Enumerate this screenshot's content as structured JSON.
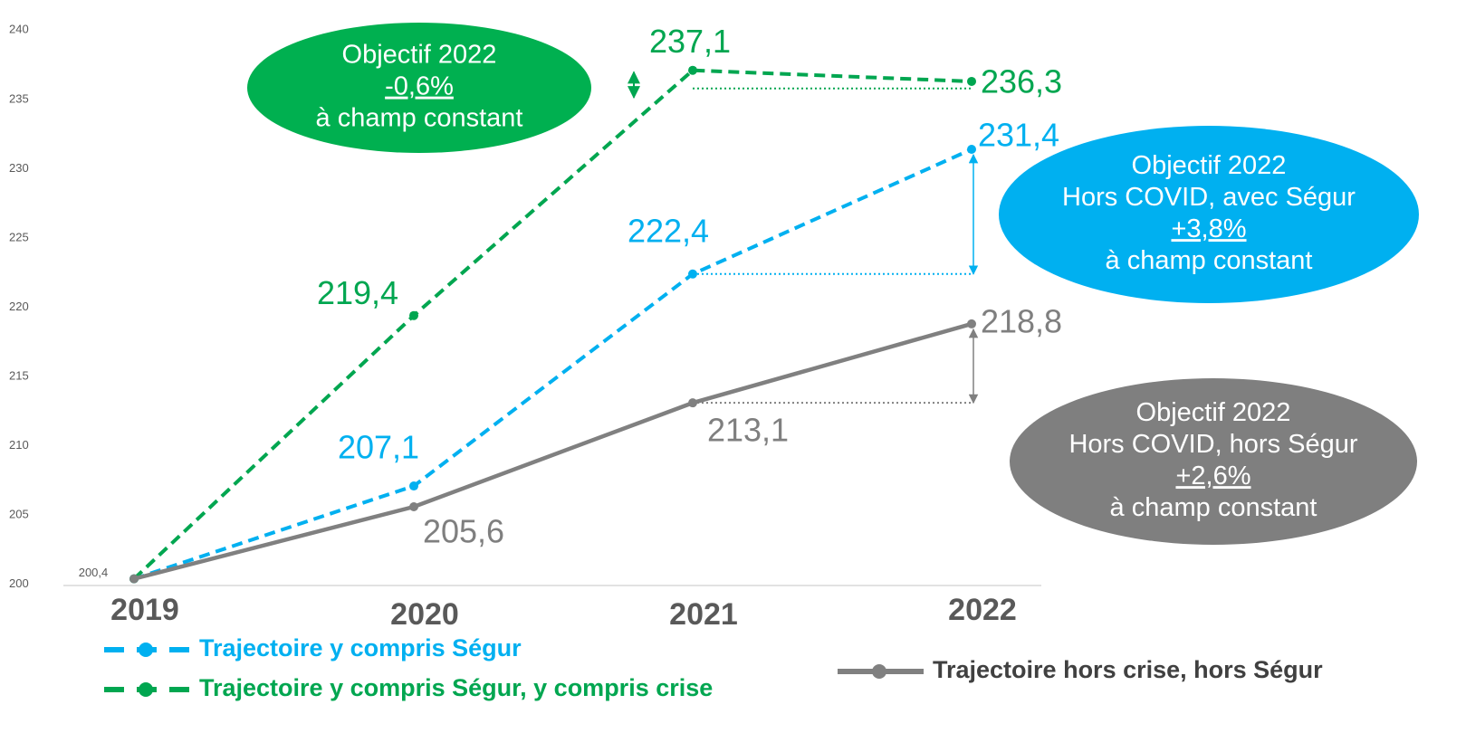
{
  "chart_data": {
    "type": "line",
    "categories": [
      "2019",
      "2020",
      "2021",
      "2022"
    ],
    "series": [
      {
        "name": "Trajectoire y compris Ségur",
        "color": "#00b0f0",
        "dashed": true,
        "values": [
          200.4,
          207.1,
          222.4,
          231.4
        ],
        "value_labels": [
          null,
          "207,1",
          "222,4",
          "231,4"
        ]
      },
      {
        "name": "Trajectoire y compris Ségur, y compris crise",
        "color": "#00a650",
        "dashed": true,
        "values": [
          200.4,
          219.4,
          237.1,
          236.3
        ],
        "value_labels": [
          null,
          "219,4",
          "237,1",
          "236,3"
        ]
      },
      {
        "name": "Trajectoire hors crise, hors Ségur",
        "color": "#808080",
        "dashed": false,
        "values": [
          200.4,
          205.6,
          213.1,
          218.8
        ],
        "value_labels": [
          "200,4",
          "205,6",
          "213,1",
          "218,8"
        ]
      }
    ],
    "ylim": [
      196,
      241
    ],
    "yticks": [
      200,
      205,
      210,
      215,
      220,
      225,
      230,
      235,
      240
    ],
    "annotations": [
      {
        "lines": [
          "Objectif 2022",
          "-0,6%",
          "à champ constant"
        ],
        "color": "#00b050"
      },
      {
        "lines": [
          "Objectif 2022",
          "Hors COVID, avec Ségur",
          "+3,8%",
          "à champ constant"
        ],
        "color": "#00b0f0"
      },
      {
        "lines": [
          "Objectif 2022",
          "Hors COVID, hors Ségur",
          "+2,6%",
          "à champ constant"
        ],
        "color": "#7f7f7f"
      }
    ]
  }
}
